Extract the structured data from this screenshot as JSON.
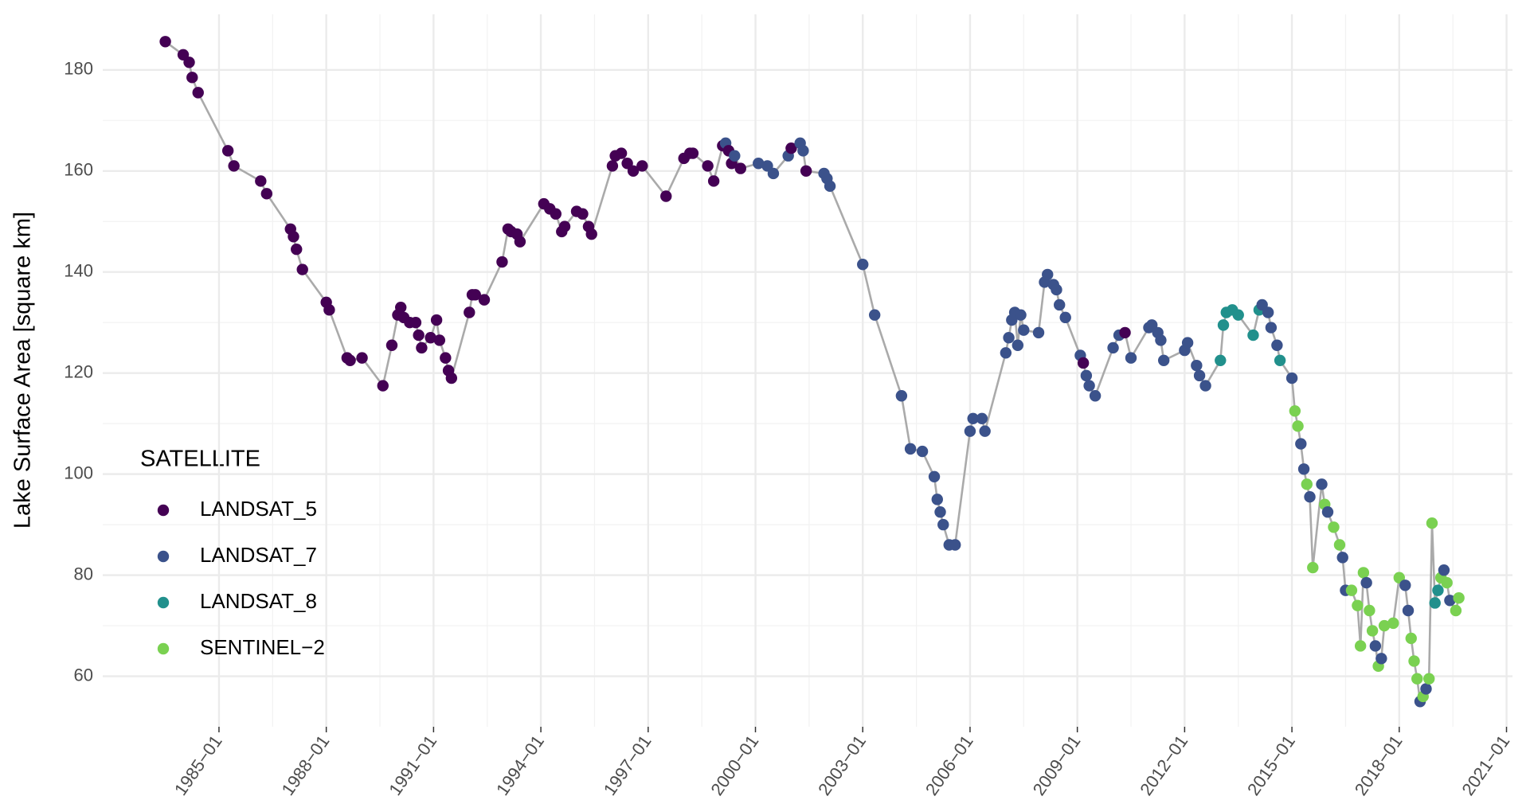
{
  "chart_data": {
    "type": "scatter",
    "y_label": "Lake Surface Area [square km]",
    "legend_title": "SATELLITE",
    "series": [
      {
        "name": "LANDSAT_5",
        "color": "#440154"
      },
      {
        "name": "LANDSAT_7",
        "color": "#3b528b"
      },
      {
        "name": "LANDSAT_8",
        "color": "#21908c"
      },
      {
        "name": "SENTINEL−2",
        "color": "#7ad151"
      }
    ],
    "line_color": "#aaaaaa",
    "grid": true,
    "legend": "left",
    "xlim": [
      "1981-10",
      "2021-03"
    ],
    "ylim": [
      50,
      191
    ],
    "yticks": [
      60,
      80,
      100,
      120,
      140,
      160,
      180
    ],
    "xticks": [
      {
        "value": "1985-01",
        "label": "1985−01"
      },
      {
        "value": "1988-01",
        "label": "1988−01"
      },
      {
        "value": "1991-01",
        "label": "1991−01"
      },
      {
        "value": "1994-01",
        "label": "1994−01"
      },
      {
        "value": "1997-01",
        "label": "1997−01"
      },
      {
        "value": "2000-01",
        "label": "2000−01"
      },
      {
        "value": "2003-01",
        "label": "2003−01"
      },
      {
        "value": "2006-01",
        "label": "2006−01"
      },
      {
        "value": "2009-01",
        "label": "2009−01"
      },
      {
        "value": "2012-01",
        "label": "2012−01"
      },
      {
        "value": "2015-01",
        "label": "2015−01"
      },
      {
        "value": "2018-01",
        "label": "2018−01"
      },
      {
        "value": "2021-01",
        "label": "2021−01"
      }
    ],
    "x": [
      "1983-07",
      "1984-01",
      "1984-03",
      "1984-04",
      "1984-06",
      "1985-04",
      "1985-06",
      "1986-03",
      "1986-05",
      "1987-01",
      "1987-02",
      "1987-03",
      "1987-05",
      "1988-01",
      "1988-02",
      "1988-08",
      "1988-09",
      "1989-01",
      "1989-08",
      "1989-11",
      "1990-01",
      "1990-02",
      "1990-03",
      "1990-05",
      "1990-07",
      "1990-08",
      "1990-09",
      "1990-12",
      "1991-02",
      "1991-03",
      "1991-05",
      "1991-06",
      "1991-07",
      "1992-01",
      "1992-02",
      "1992-03",
      "1992-06",
      "1992-12",
      "1993-02",
      "1993-03",
      "1993-05",
      "1993-06",
      "1994-02",
      "1994-04",
      "1994-06",
      "1994-08",
      "1994-09",
      "1995-01",
      "1995-03",
      "1995-05",
      "1995-06",
      "1996-01",
      "1996-02",
      "1996-04",
      "1996-06",
      "1996-08",
      "1996-11",
      "1997-07",
      "1998-01",
      "1998-03",
      "1998-04",
      "1998-09",
      "1998-11",
      "1999-02",
      "1999-03",
      "1999-04",
      "1999-05",
      "1999-06",
      "1999-08",
      "2000-02",
      "2000-05",
      "2000-07",
      "2000-12",
      "2001-01",
      "2001-04",
      "2001-05",
      "2001-06",
      "2001-12",
      "2002-01",
      "2002-02",
      "2003-01",
      "2003-05",
      "2004-02",
      "2004-05",
      "2004-09",
      "2005-01",
      "2005-02",
      "2005-03",
      "2005-04",
      "2005-06",
      "2005-08",
      "2006-01",
      "2006-02",
      "2006-05",
      "2006-06",
      "2007-01",
      "2007-02",
      "2007-03",
      "2007-04",
      "2007-05",
      "2007-06",
      "2007-07",
      "2007-12",
      "2008-02",
      "2008-03",
      "2008-05",
      "2008-06",
      "2008-07",
      "2008-09",
      "2009-02",
      "2009-03",
      "2009-04",
      "2009-05",
      "2009-07",
      "2010-01",
      "2010-03",
      "2010-05",
      "2010-07",
      "2011-01",
      "2011-02",
      "2011-04",
      "2011-05",
      "2011-06",
      "2012-01",
      "2012-02",
      "2012-05",
      "2012-06",
      "2012-08",
      "2013-01",
      "2013-02",
      "2013-03",
      "2013-05",
      "2013-07",
      "2013-12",
      "2014-02",
      "2014-03",
      "2014-05",
      "2014-06",
      "2014-08",
      "2014-09",
      "2015-01",
      "2015-02",
      "2015-03",
      "2015-04",
      "2015-05",
      "2015-06",
      "2015-07",
      "2015-08",
      "2015-11",
      "2015-12",
      "2016-01",
      "2016-03",
      "2016-05",
      "2016-06",
      "2016-07",
      "2016-09",
      "2016-11",
      "2016-12",
      "2017-01",
      "2017-02",
      "2017-03",
      "2017-04",
      "2017-05",
      "2017-06",
      "2017-07",
      "2017-08",
      "2017-11",
      "2018-01",
      "2018-03",
      "2018-04",
      "2018-05",
      "2018-06",
      "2018-07",
      "2018-08",
      "2018-09",
      "2018-10",
      "2018-11",
      "2018-12",
      "2019-01",
      "2019-02",
      "2019-03",
      "2019-04",
      "2019-05",
      "2019-06",
      "2019-08",
      "2019-09"
    ],
    "values": [
      185.6,
      183,
      181.5,
      178.5,
      175.5,
      164,
      161,
      158,
      155.5,
      148.5,
      147,
      144.5,
      140.5,
      134,
      132.5,
      123,
      122.5,
      123,
      117.5,
      125.5,
      131.5,
      133,
      131,
      130,
      130,
      127.5,
      125,
      127,
      130.5,
      126.5,
      123,
      120.5,
      119,
      132,
      135.5,
      135.5,
      134.5,
      142,
      148.5,
      148,
      147.5,
      146,
      153.5,
      152.5,
      151.5,
      148,
      149,
      152,
      151.5,
      149,
      147.5,
      161,
      163,
      163.5,
      161.5,
      160,
      161,
      155,
      162.5,
      163.5,
      163.5,
      161,
      158,
      165,
      165.5,
      164,
      161.5,
      163,
      160.5,
      161.5,
      161,
      159.5,
      163,
      164.5,
      165.5,
      164,
      160,
      159.5,
      158.5,
      157,
      141.5,
      131.5,
      115.5,
      105,
      104.5,
      99.5,
      95,
      92.5,
      90,
      86,
      86,
      108.5,
      111,
      111,
      108.5,
      124,
      127,
      130.5,
      132,
      125.5,
      131.5,
      128.5,
      128,
      138,
      139.5,
      137.5,
      136.5,
      133.5,
      131,
      123.5,
      122,
      119.5,
      117.5,
      115.5,
      125,
      127.5,
      128,
      123,
      129,
      129.5,
      128,
      126.5,
      122.5,
      124.5,
      126,
      121.5,
      119.5,
      117.5,
      122.5,
      129.5,
      132,
      132.5,
      131.5,
      127.5,
      132.5,
      133.5,
      132,
      129,
      125.5,
      122.5,
      119,
      112.5,
      109.5,
      106,
      101,
      98,
      95.5,
      81.5,
      98,
      94,
      92.5,
      89.5,
      86,
      83.5,
      77,
      77,
      74,
      66,
      80.5,
      78.5,
      73,
      69,
      66,
      62,
      63.5,
      70,
      70.5,
      79.5,
      78,
      73,
      67.5,
      63,
      59.5,
      55,
      56,
      57.5,
      59.5,
      90.3,
      74.5,
      77,
      79.5,
      81,
      78.5,
      75,
      73,
      75.5
    ],
    "point_series": [
      0,
      0,
      0,
      0,
      0,
      0,
      0,
      0,
      0,
      0,
      0,
      0,
      0,
      0,
      0,
      0,
      0,
      0,
      0,
      0,
      0,
      0,
      0,
      0,
      0,
      0,
      0,
      0,
      0,
      0,
      0,
      0,
      0,
      0,
      0,
      0,
      0,
      0,
      0,
      0,
      0,
      0,
      0,
      0,
      0,
      0,
      0,
      0,
      0,
      0,
      0,
      0,
      0,
      0,
      0,
      0,
      0,
      0,
      0,
      0,
      0,
      0,
      0,
      0,
      1,
      0,
      0,
      1,
      0,
      1,
      1,
      1,
      1,
      0,
      1,
      1,
      0,
      1,
      1,
      1,
      1,
      1,
      1,
      1,
      1,
      1,
      1,
      1,
      1,
      1,
      1,
      1,
      1,
      1,
      1,
      1,
      1,
      1,
      1,
      1,
      1,
      1,
      1,
      1,
      1,
      1,
      1,
      1,
      1,
      1,
      0,
      1,
      1,
      1,
      1,
      1,
      0,
      1,
      1,
      1,
      1,
      1,
      1,
      1,
      1,
      1,
      1,
      1,
      2,
      2,
      2,
      2,
      2,
      2,
      2,
      1,
      1,
      1,
      1,
      2,
      1,
      3,
      3,
      1,
      1,
      3,
      1,
      3,
      1,
      3,
      1,
      3,
      3,
      1,
      1,
      3,
      3,
      3,
      3,
      1,
      3,
      3,
      1,
      3,
      1,
      3,
      3,
      3,
      1,
      1,
      3,
      3,
      3,
      1,
      3,
      1,
      3,
      3,
      2,
      2,
      3,
      1,
      3,
      1,
      3,
      3
    ]
  }
}
